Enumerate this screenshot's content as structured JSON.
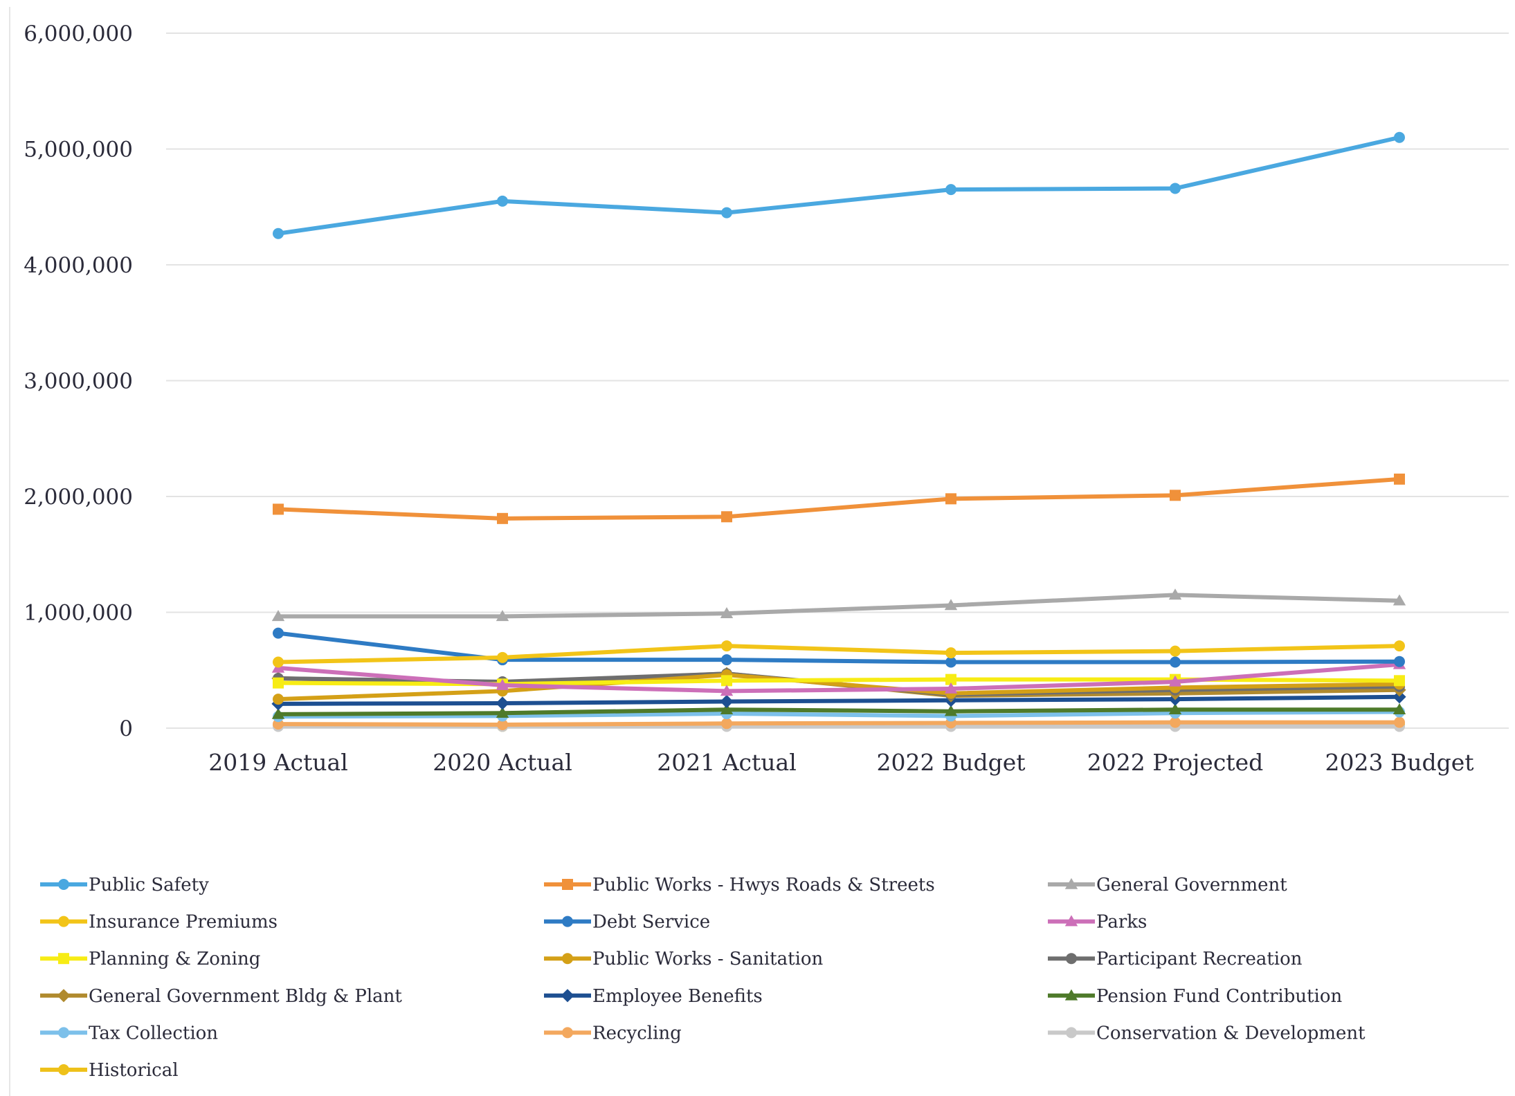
{
  "chart_data": {
    "type": "line",
    "title": "",
    "xlabel": "",
    "ylabel": "",
    "categories": [
      "2019 Actual",
      "2020 Actual",
      "2021 Actual",
      "2022 Budget",
      "2022 Projected",
      "2023 Budget"
    ],
    "ylim": [
      0,
      6000000
    ],
    "y_ticks": [
      0,
      1000000,
      2000000,
      3000000,
      4000000,
      5000000,
      6000000
    ],
    "y_tick_labels": [
      "0",
      "1,000,000",
      "2,000,000",
      "3,000,000",
      "4,000,000",
      "5,000,000",
      "6,000,000"
    ],
    "grid": true,
    "legend_position": "bottom",
    "series": [
      {
        "name": "Public Safety",
        "color": "#4aa8e0",
        "marker": "circle",
        "values": [
          4270000,
          4550000,
          4450000,
          4650000,
          4660000,
          5100000
        ]
      },
      {
        "name": "Public Works - Hwys Roads & Streets",
        "color": "#f0913a",
        "marker": "square",
        "values": [
          1890000,
          1810000,
          1825000,
          1980000,
          2010000,
          2150000
        ]
      },
      {
        "name": "General Government",
        "color": "#a9a9a9",
        "marker": "triangle",
        "values": [
          965000,
          965000,
          990000,
          1060000,
          1150000,
          1100000
        ]
      },
      {
        "name": "Insurance Premiums",
        "color": "#f2c418",
        "marker": "circle",
        "values": [
          570000,
          610000,
          710000,
          650000,
          665000,
          710000
        ]
      },
      {
        "name": "Debt Service",
        "color": "#2e7bc4",
        "marker": "circle",
        "values": [
          820000,
          590000,
          590000,
          570000,
          570000,
          575000
        ]
      },
      {
        "name": "Parks",
        "color": "#cc6fb8",
        "marker": "triangle",
        "values": [
          520000,
          370000,
          320000,
          340000,
          400000,
          550000
        ]
      },
      {
        "name": "Planning & Zoning",
        "color": "#f7ec14",
        "marker": "square",
        "values": [
          390000,
          380000,
          410000,
          420000,
          420000,
          410000
        ]
      },
      {
        "name": "Public Works - Sanitation",
        "color": "#d4a017",
        "marker": "circle",
        "values": [
          250000,
          320000,
          460000,
          300000,
          350000,
          380000
        ]
      },
      {
        "name": "Participant Recreation",
        "color": "#6e6e6e",
        "marker": "circle",
        "values": [
          430000,
          400000,
          470000,
          290000,
          330000,
          360000
        ]
      },
      {
        "name": "General Government Bldg & Plant",
        "color": "#b08a2e",
        "marker": "diamond",
        "values": [
          430000,
          390000,
          470000,
          280000,
          300000,
          330000
        ]
      },
      {
        "name": "Employee Benefits",
        "color": "#1d4f91",
        "marker": "diamond",
        "values": [
          210000,
          215000,
          230000,
          240000,
          250000,
          270000
        ]
      },
      {
        "name": "Pension Fund Contribution",
        "color": "#4e7a2a",
        "marker": "triangle",
        "values": [
          120000,
          130000,
          160000,
          145000,
          160000,
          160000
        ]
      },
      {
        "name": "Tax Collection",
        "color": "#7cc0ea",
        "marker": "circle",
        "values": [
          100000,
          105000,
          125000,
          105000,
          130000,
          140000
        ]
      },
      {
        "name": "Recycling",
        "color": "#f3a85e",
        "marker": "circle",
        "values": [
          35000,
          30000,
          40000,
          45000,
          50000,
          50000
        ]
      },
      {
        "name": "Conservation & Development",
        "color": "#c9c9c9",
        "marker": "circle",
        "values": [
          15000,
          15000,
          15000,
          15000,
          15000,
          15000
        ]
      },
      {
        "name": "Historical",
        "color": "#eec11a",
        "marker": "circle",
        "values": [
          20000,
          15000,
          25000,
          25000,
          30000,
          30000
        ]
      }
    ]
  }
}
